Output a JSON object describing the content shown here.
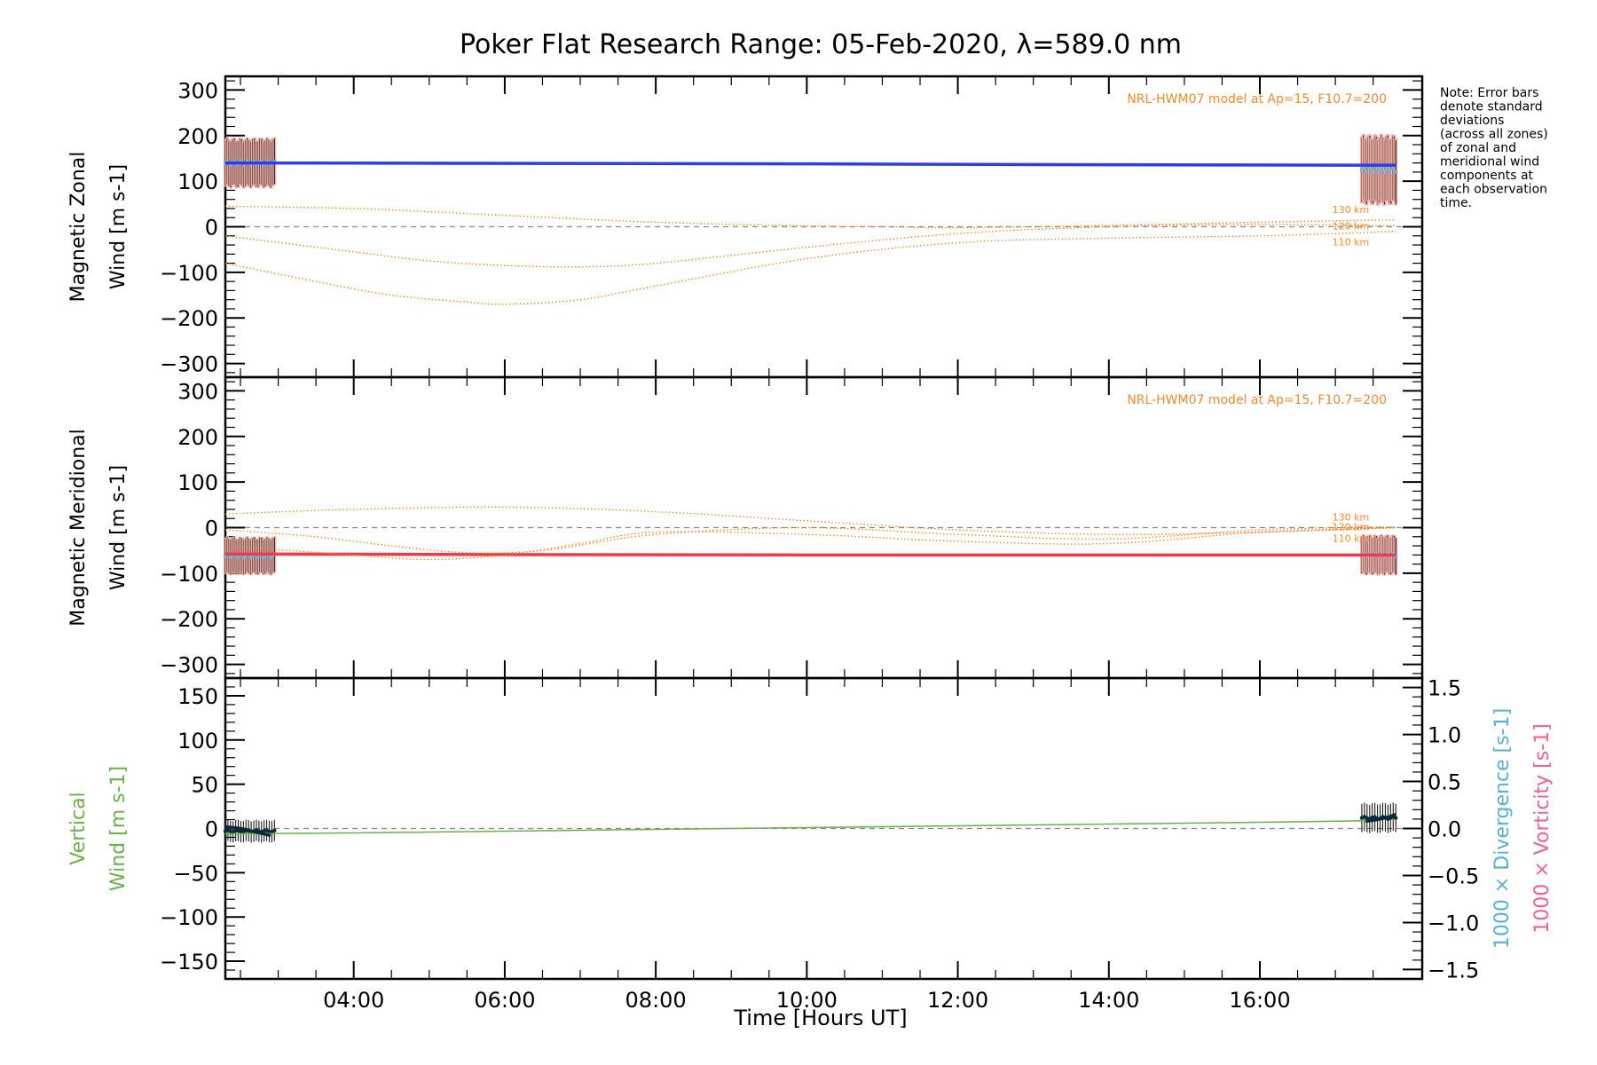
{
  "title": "Poker Flat Research Range: 05-Feb-2020, λ=589.0 nm",
  "note_lines": [
    "Note: Error bars",
    "denote standard",
    "deviations",
    "(across all zones)",
    "of zonal and",
    "meridional wind",
    "components at",
    "each observation",
    "time."
  ],
  "colors": {
    "zonal": "#2f3de6",
    "meridional": "#f03a4a",
    "vertical": "#6ab04c",
    "model": "#f28a30",
    "divergence": "#5aafd6",
    "vorticity": "#f06090",
    "errbar": "#1a1a1a",
    "zonal_shade": "#f4b0a8",
    "lavender": "#b0b0e0",
    "cyan": "#5ab0e0",
    "dark_trace": "#0a2a3a"
  },
  "chart_data": [
    {
      "type": "line",
      "panel": "zonal",
      "ylabel_line1": "Magnetic Zonal",
      "ylabel_line2": "Wind [m s-1]",
      "model_label": "NRL-HWM07 model at Ap=15, F10.7=200",
      "xlim": [
        2.3,
        18.15
      ],
      "ylim": [
        -330,
        330
      ],
      "yticks": [
        -300,
        -200,
        -100,
        0,
        100,
        200,
        300
      ],
      "xticks": [
        4,
        6,
        8,
        10,
        12,
        14,
        16
      ],
      "xticklabels": [
        "04:00",
        "06:00",
        "08:00",
        "10:00",
        "12:00",
        "14:00",
        "16:00"
      ],
      "series": [
        {
          "style": "fit",
          "x": [
            2.3,
            6.5,
            10.0,
            14.0,
            17.8
          ],
          "y": [
            140,
            139,
            138,
            136,
            135
          ]
        },
        {
          "style": "model",
          "label": "130 km",
          "x": [
            2.3,
            4,
            6,
            8,
            10,
            11,
            12,
            14,
            16,
            17.8
          ],
          "y": [
            45,
            40,
            25,
            10,
            2,
            0,
            -2,
            3,
            10,
            15
          ]
        },
        {
          "style": "model",
          "label": "120 km",
          "x": [
            2.3,
            4,
            5,
            6,
            7,
            8,
            10,
            12,
            14,
            16,
            17.8
          ],
          "y": [
            -20,
            -55,
            -75,
            -85,
            -88,
            -80,
            -45,
            -15,
            0,
            5,
            2
          ]
        },
        {
          "style": "model",
          "label": "110 km",
          "x": [
            2.3,
            3.5,
            4.5,
            5.5,
            6,
            7,
            8,
            10,
            12,
            14,
            16,
            17.8
          ],
          "y": [
            -80,
            -120,
            -150,
            -165,
            -170,
            -160,
            -130,
            -70,
            -35,
            -25,
            -20,
            -10
          ]
        }
      ],
      "errorbars": [
        {
          "x_range": [
            2.3,
            2.95
          ],
          "n": 28,
          "center": 140,
          "halfwidth": 50
        },
        {
          "x_range": [
            17.35,
            17.8
          ],
          "n": 22,
          "center": 125,
          "halfwidth": 70
        }
      ]
    },
    {
      "type": "line",
      "panel": "meridional",
      "ylabel_line1": "Magnetic Meridional",
      "ylabel_line2": "Wind [m s-1]",
      "model_label": "NRL-HWM07 model at Ap=15, F10.7=200",
      "xlim": [
        2.3,
        18.15
      ],
      "ylim": [
        -330,
        330
      ],
      "yticks": [
        -300,
        -200,
        -100,
        0,
        100,
        200,
        300
      ],
      "xticks": [
        4,
        6,
        8,
        10,
        12,
        14,
        16
      ],
      "series": [
        {
          "style": "fit",
          "x": [
            2.3,
            10.0,
            17.8
          ],
          "y": [
            -58,
            -60,
            -60
          ]
        },
        {
          "style": "model",
          "label": "130 km",
          "x": [
            2.3,
            4,
            6,
            8,
            10,
            12,
            14,
            16,
            17.8
          ],
          "y": [
            30,
            40,
            45,
            35,
            15,
            -5,
            -15,
            -10,
            0
          ]
        },
        {
          "style": "model",
          "label": "120 km",
          "x": [
            2.3,
            3.5,
            4.5,
            5.5,
            6.5,
            8,
            10,
            12,
            14,
            16,
            17.8
          ],
          "y": [
            -5,
            -20,
            -40,
            -55,
            -50,
            -15,
            0,
            -15,
            -25,
            -5,
            2
          ]
        },
        {
          "style": "model",
          "label": "110 km",
          "x": [
            2.3,
            4,
            5,
            6,
            7,
            8,
            10,
            12,
            14,
            16,
            17.8
          ],
          "y": [
            -40,
            -60,
            -70,
            -60,
            -35,
            -10,
            -15,
            -30,
            -35,
            -10,
            0
          ]
        }
      ],
      "errorbars": [
        {
          "x_range": [
            2.3,
            2.95
          ],
          "n": 28,
          "center": -62,
          "halfwidth": 38
        },
        {
          "x_range": [
            17.35,
            17.8
          ],
          "n": 22,
          "center": -60,
          "halfwidth": 40
        }
      ]
    },
    {
      "type": "line",
      "panel": "vertical",
      "ylabel_line1": "Vertical",
      "ylabel_line2": "Wind [m s-1]",
      "y2label_1": "1000 × Divergence [s-1]",
      "y2label_2": "1000 × Vorticity [s-1]",
      "xlabel": "Time [Hours UT]",
      "xlim": [
        2.3,
        18.15
      ],
      "ylim": [
        -170,
        170
      ],
      "yticks": [
        -150,
        -100,
        -50,
        0,
        50,
        100,
        150
      ],
      "y2lim": [
        -1.6,
        1.6
      ],
      "y2ticks": [
        -1.5,
        -1.0,
        -0.5,
        0.0,
        0.5,
        1.0,
        1.5
      ],
      "xticks": [
        4,
        6,
        8,
        10,
        12,
        14,
        16
      ],
      "xticklabels": [
        "04:00",
        "06:00",
        "08:00",
        "10:00",
        "12:00",
        "14:00",
        "16:00"
      ],
      "series": [
        {
          "style": "vertical",
          "x": [
            2.3,
            4,
            6,
            8,
            10,
            12,
            14,
            16,
            17.6
          ],
          "y": [
            -6,
            -5,
            -3,
            -1,
            1,
            3,
            5,
            7,
            9
          ]
        },
        {
          "style": "trace_start",
          "x": [
            2.3,
            2.5,
            2.7,
            2.9
          ],
          "y": [
            2,
            0,
            -4,
            -8
          ]
        },
        {
          "style": "trace_end",
          "x": [
            17.4,
            17.55,
            17.7,
            17.8
          ],
          "y": [
            8,
            10,
            13,
            16
          ]
        }
      ],
      "errorbars": [
        {
          "x_range": [
            2.3,
            2.95
          ],
          "n": 20,
          "center": -3,
          "halfwidth": 12
        },
        {
          "x_range": [
            17.35,
            17.8
          ],
          "n": 14,
          "center": 12,
          "halfwidth": 16
        }
      ]
    }
  ]
}
